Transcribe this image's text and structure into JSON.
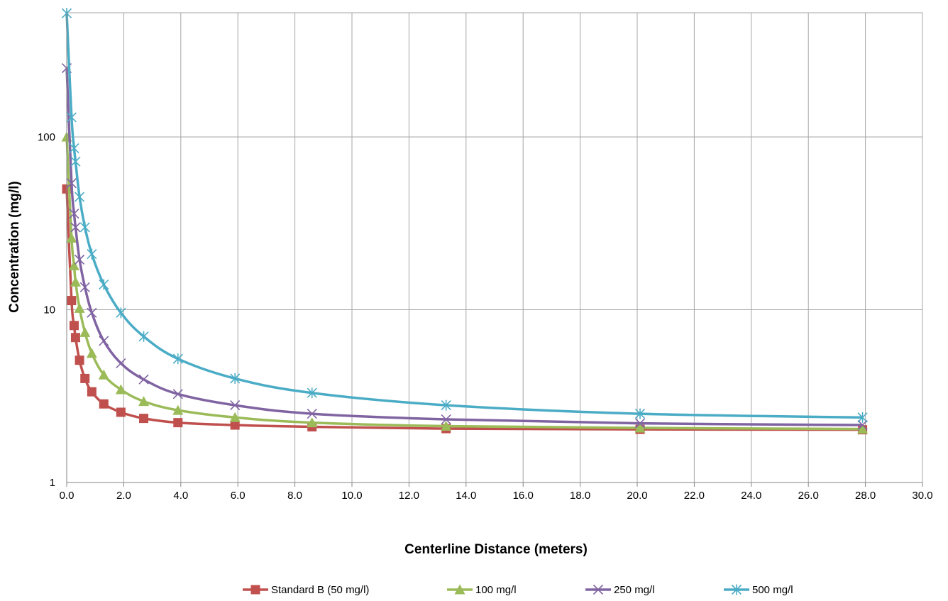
{
  "chart_data": {
    "type": "line",
    "title": "",
    "xlabel": "Centerline Distance (meters)",
    "ylabel": "Concentration (mg/l)",
    "x_scale": "linear",
    "y_scale": "log",
    "xlim": [
      0,
      30
    ],
    "ylim": [
      1,
      600
    ],
    "x_ticks": [
      "0.0",
      "2.0",
      "4.0",
      "6.0",
      "8.0",
      "10.0",
      "12.0",
      "14.0",
      "16.0",
      "18.0",
      "20.0",
      "22.0",
      "24.0",
      "26.0",
      "28.0",
      "30.0"
    ],
    "y_ticks": [
      "1",
      "10",
      "100"
    ],
    "grid": true,
    "legend_position": "bottom",
    "x": [
      0.0,
      0.17,
      0.26,
      0.31,
      0.45,
      0.64,
      0.88,
      1.3,
      1.9,
      2.7,
      3.9,
      5.9,
      8.6,
      13.3,
      20.1,
      27.9
    ],
    "series": [
      {
        "name": "Standard B (50 mg/l)",
        "color": "#c0504d",
        "marker": "square",
        "values": [
          50,
          11.3,
          8.1,
          6.9,
          5.1,
          4.0,
          3.35,
          2.85,
          2.55,
          2.35,
          2.22,
          2.15,
          2.1,
          2.05,
          2.03,
          2.02
        ]
      },
      {
        "name": "100 mg/l",
        "color": "#9bbb59",
        "marker": "triangle",
        "values": [
          100,
          26,
          18,
          14.5,
          10.2,
          7.4,
          5.6,
          4.2,
          3.45,
          2.95,
          2.62,
          2.38,
          2.22,
          2.12,
          2.07,
          2.04
        ]
      },
      {
        "name": "250 mg/l",
        "color": "#8064a2",
        "marker": "x",
        "values": [
          250,
          54,
          36,
          30,
          19.5,
          13.5,
          9.6,
          6.6,
          4.9,
          3.95,
          3.25,
          2.8,
          2.5,
          2.32,
          2.2,
          2.15
        ]
      },
      {
        "name": "500 mg/l",
        "color": "#4bacc6",
        "marker": "star",
        "values": [
          520,
          130,
          86,
          72,
          45,
          30,
          21,
          14,
          9.6,
          7.0,
          5.2,
          4.0,
          3.3,
          2.8,
          2.5,
          2.38
        ]
      }
    ]
  }
}
